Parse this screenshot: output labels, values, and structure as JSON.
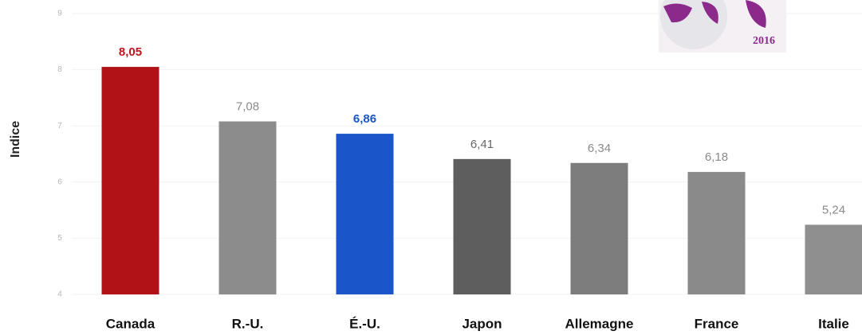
{
  "chart_data": {
    "type": "bar",
    "y_label": "Indice",
    "logo_text": "2016",
    "categories": [
      "Canada",
      "R.-U.",
      "É.-U.",
      "Japon",
      "Allemagne",
      "France",
      "Italie"
    ],
    "values": [
      8.05,
      7.08,
      6.86,
      6.41,
      6.34,
      6.18,
      5.24
    ],
    "value_labels": [
      "8,05",
      "7,08",
      "6,86",
      "6,41",
      "6,34",
      "6,18",
      "5,24"
    ],
    "colors": [
      "#b01217",
      "#8c8c8c",
      "#1a55c9",
      "#5e5e5e",
      "#7d7d7d",
      "#8a8a8a",
      "#8f8f8f"
    ],
    "label_colors": [
      "#c0141a",
      "#8a8a8a",
      "#1a55c9",
      "#666666",
      "#8a8a8a",
      "#8a8a8a",
      "#8a8a8a"
    ],
    "label_bold": [
      true,
      false,
      true,
      false,
      false,
      false,
      false
    ],
    "ylim": [
      4,
      9
    ],
    "yticks": [
      4,
      5,
      6,
      7,
      8,
      9
    ],
    "grid": true
  }
}
